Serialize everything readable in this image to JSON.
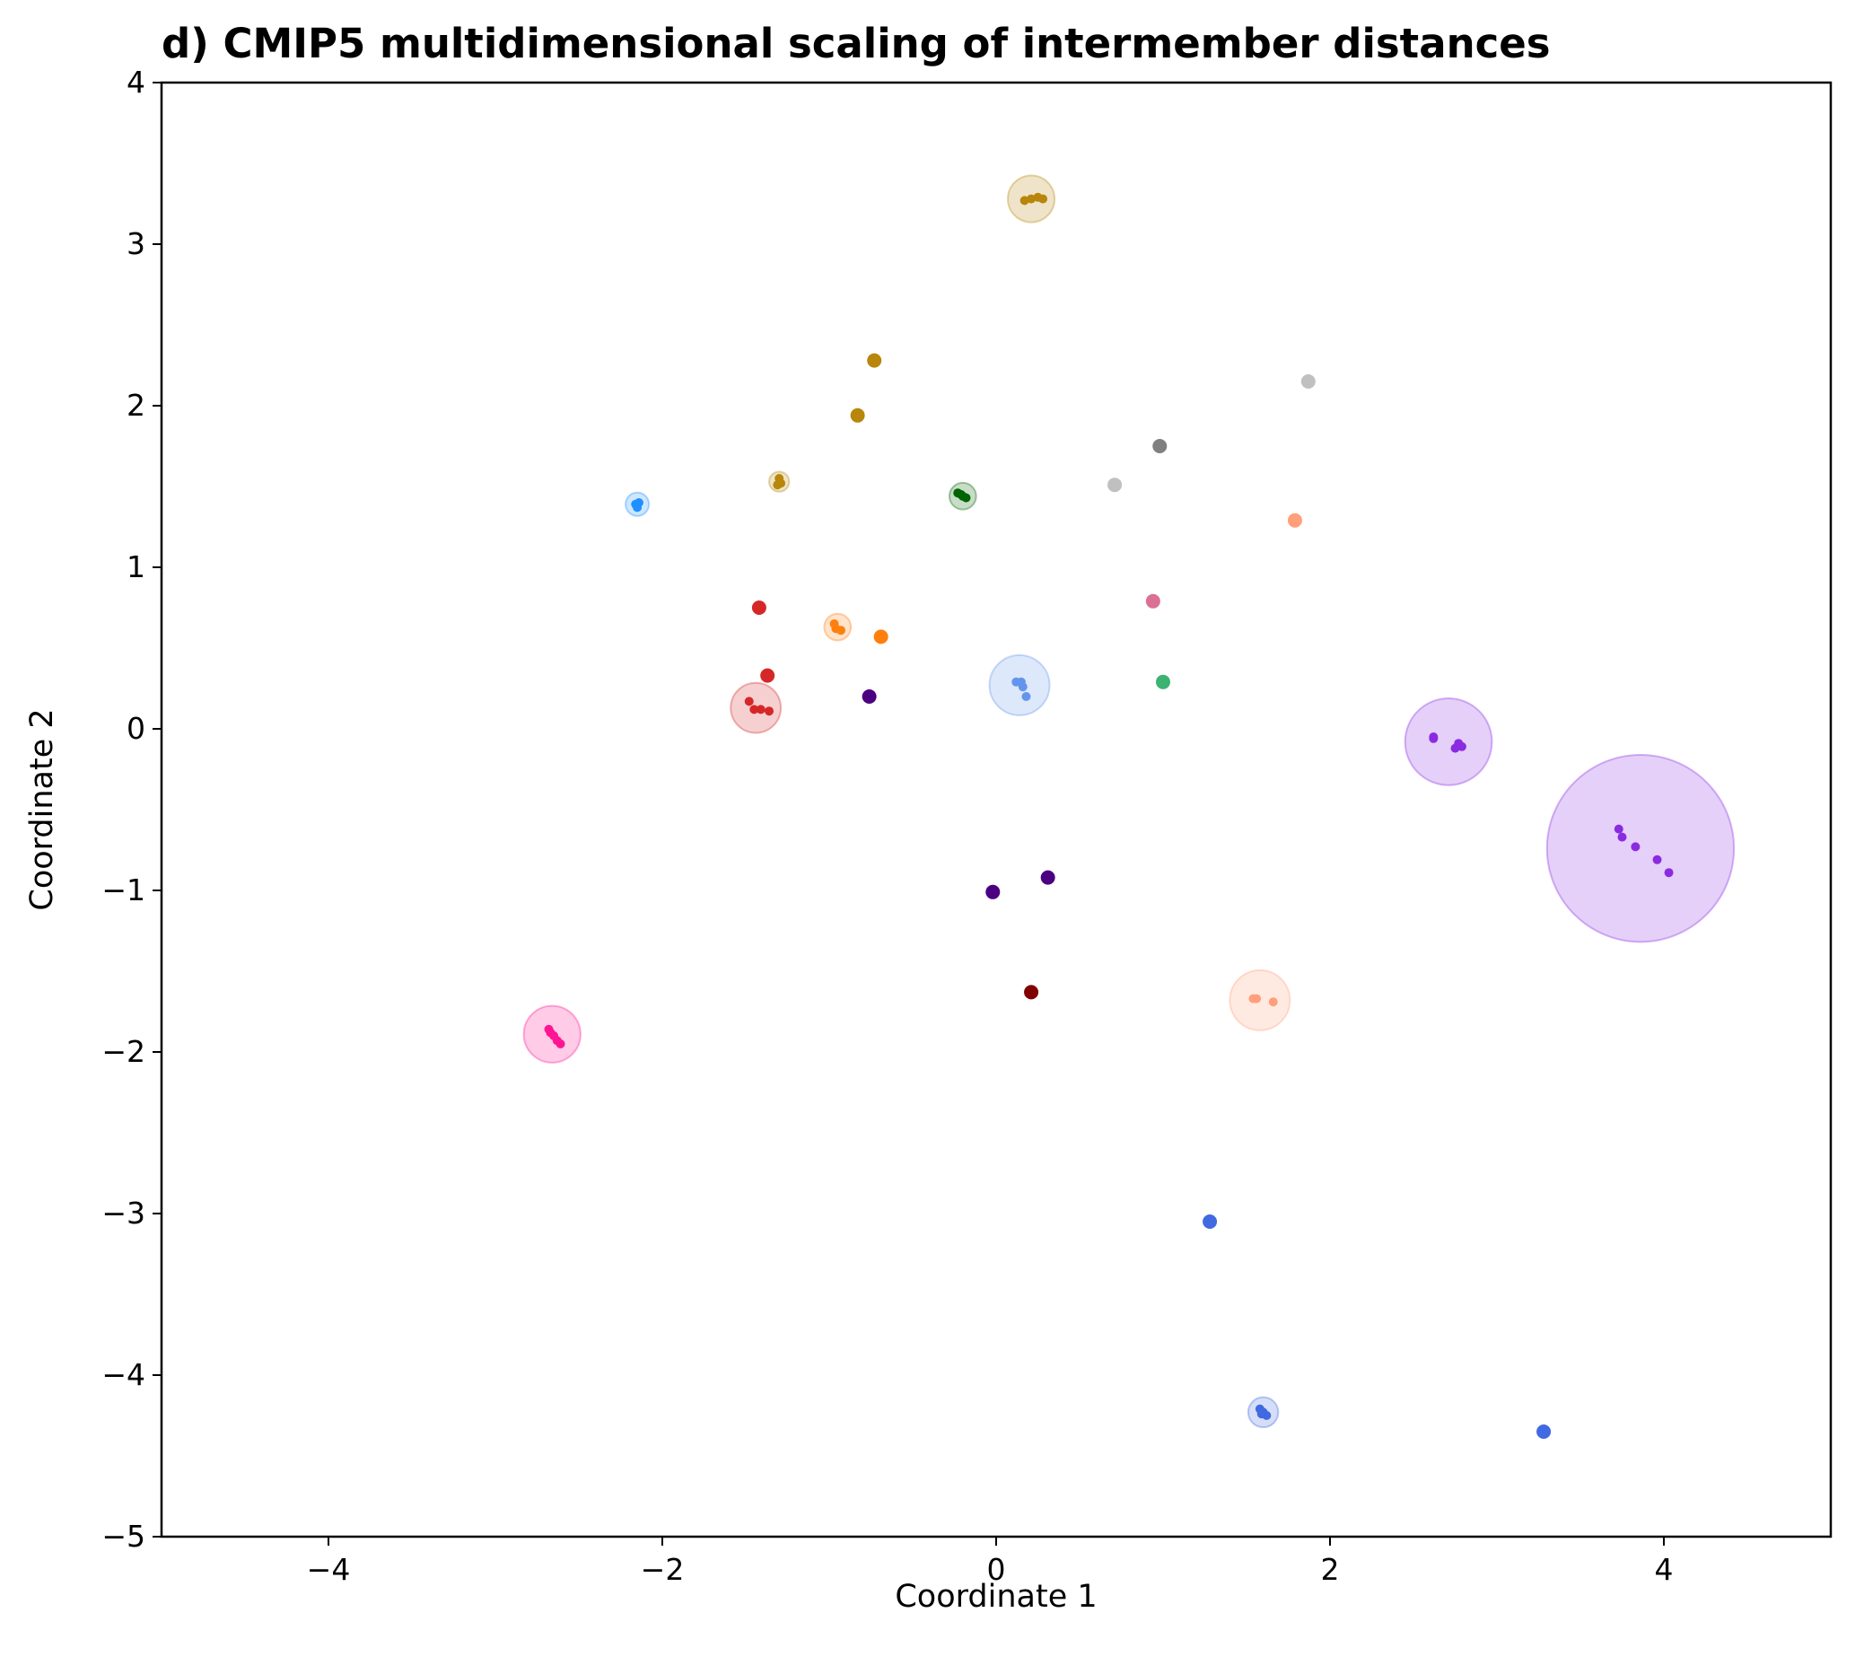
{
  "chart_data": {
    "type": "scatter",
    "title": "d) CMIP5 multidimensional scaling of intermember distances",
    "xlabel": "Coordinate 1",
    "ylabel": "Coordinate 2",
    "xlim": [
      -5,
      5
    ],
    "ylim": [
      -5,
      4
    ],
    "xticks": [
      {
        "value": -4,
        "label": "−4"
      },
      {
        "value": -2,
        "label": "−2"
      },
      {
        "value": 0,
        "label": "0"
      },
      {
        "value": 2,
        "label": "2"
      },
      {
        "value": 4,
        "label": "4"
      }
    ],
    "yticks": [
      {
        "value": -5,
        "label": "−5"
      },
      {
        "value": -4,
        "label": "−4"
      },
      {
        "value": -3,
        "label": "−3"
      },
      {
        "value": -2,
        "label": "−2"
      },
      {
        "value": -1,
        "label": "−1"
      },
      {
        "value": 0,
        "label": "0"
      },
      {
        "value": 1,
        "label": "1"
      },
      {
        "value": 2,
        "label": "2"
      },
      {
        "value": 3,
        "label": "3"
      },
      {
        "value": 4,
        "label": "4"
      }
    ],
    "grid": false,
    "legend": "none",
    "groups": [
      {
        "color": "#b8860b",
        "center": [
          0.21,
          3.28
        ],
        "radius": 0.14,
        "members": [
          [
            0.17,
            3.27
          ],
          [
            0.21,
            3.28
          ],
          [
            0.25,
            3.29
          ],
          [
            0.28,
            3.28
          ]
        ]
      },
      {
        "color": "#b8860b",
        "center": [
          -0.73,
          2.28
        ],
        "radius": 0,
        "members": [
          [
            -0.73,
            2.28
          ]
        ]
      },
      {
        "color": "#b8860b",
        "center": [
          -0.83,
          1.94
        ],
        "radius": 0,
        "members": [
          [
            -0.83,
            1.94
          ]
        ]
      },
      {
        "color": "#b8860b",
        "center": [
          -1.3,
          1.53
        ],
        "radius": 0.06,
        "members": [
          [
            -1.3,
            1.55
          ],
          [
            -1.31,
            1.51
          ],
          [
            -1.29,
            1.52
          ]
        ]
      },
      {
        "color": "#1e90ff",
        "center": [
          -2.15,
          1.39
        ],
        "radius": 0.07,
        "members": [
          [
            -2.16,
            1.39
          ],
          [
            -2.14,
            1.4
          ],
          [
            -2.15,
            1.37
          ]
        ]
      },
      {
        "color": "#006400",
        "center": [
          -0.2,
          1.44
        ],
        "radius": 0.08,
        "members": [
          [
            -0.23,
            1.46
          ],
          [
            -0.2,
            1.44
          ],
          [
            -0.18,
            1.43
          ],
          [
            -0.21,
            1.45
          ]
        ]
      },
      {
        "color": "#c0c0c0",
        "center": [
          1.87,
          2.15
        ],
        "radius": 0,
        "members": [
          [
            1.87,
            2.15
          ]
        ]
      },
      {
        "color": "#c0c0c0",
        "center": [
          0.71,
          1.51
        ],
        "radius": 0,
        "members": [
          [
            0.71,
            1.51
          ]
        ]
      },
      {
        "color": "#808080",
        "center": [
          0.98,
          1.75
        ],
        "radius": 0,
        "members": [
          [
            0.98,
            1.75
          ]
        ]
      },
      {
        "color": "#ffa07a",
        "center": [
          1.79,
          1.29
        ],
        "radius": 0,
        "members": [
          [
            1.79,
            1.29
          ]
        ]
      },
      {
        "color": "#db7093",
        "center": [
          0.94,
          0.79
        ],
        "radius": 0,
        "members": [
          [
            0.94,
            0.79
          ]
        ]
      },
      {
        "color": "#3cb371",
        "center": [
          1.0,
          0.29
        ],
        "radius": 0,
        "members": [
          [
            1.0,
            0.29
          ]
        ]
      },
      {
        "color": "#d62728",
        "center": [
          -1.42,
          0.75
        ],
        "radius": 0,
        "members": [
          [
            -1.42,
            0.75
          ]
        ]
      },
      {
        "color": "#d62728",
        "center": [
          -1.37,
          0.33
        ],
        "radius": 0,
        "members": [
          [
            -1.37,
            0.33
          ]
        ]
      },
      {
        "color": "#d62728",
        "center": [
          -1.44,
          0.13
        ],
        "radius": 0.15,
        "members": [
          [
            -1.48,
            0.17
          ],
          [
            -1.45,
            0.12
          ],
          [
            -1.41,
            0.12
          ],
          [
            -1.36,
            0.11
          ]
        ]
      },
      {
        "color": "#ff7f0e",
        "center": [
          -0.95,
          0.63
        ],
        "radius": 0.08,
        "members": [
          [
            -0.97,
            0.65
          ],
          [
            -0.93,
            0.61
          ],
          [
            -0.96,
            0.62
          ]
        ]
      },
      {
        "color": "#ff7f0e",
        "center": [
          -0.69,
          0.57
        ],
        "radius": 0,
        "members": [
          [
            -0.69,
            0.57
          ]
        ]
      },
      {
        "color": "#4b0082",
        "center": [
          -0.76,
          0.2
        ],
        "radius": 0,
        "members": [
          [
            -0.76,
            0.2
          ]
        ]
      },
      {
        "color": "#4b0082",
        "center": [
          -0.02,
          -1.01
        ],
        "radius": 0,
        "members": [
          [
            -0.02,
            -1.01
          ]
        ]
      },
      {
        "color": "#4b0082",
        "center": [
          0.31,
          -0.92
        ],
        "radius": 0,
        "members": [
          [
            0.31,
            -0.92
          ]
        ]
      },
      {
        "color": "#800000",
        "center": [
          0.21,
          -1.63
        ],
        "radius": 0,
        "members": [
          [
            0.21,
            -1.63
          ]
        ]
      },
      {
        "color": "#6495ed",
        "center": [
          0.14,
          0.27
        ],
        "radius": 0.18,
        "members": [
          [
            0.12,
            0.29
          ],
          [
            0.15,
            0.29
          ],
          [
            0.16,
            0.26
          ],
          [
            0.18,
            0.2
          ]
        ]
      },
      {
        "color": "#8a2be2",
        "center": [
          2.71,
          -0.08
        ],
        "radius": 0.26,
        "members": [
          [
            2.62,
            -0.05
          ],
          [
            2.62,
            -0.06
          ],
          [
            2.75,
            -0.12
          ],
          [
            2.77,
            -0.09
          ],
          [
            2.79,
            -0.11
          ]
        ]
      },
      {
        "color": "#8a2be2",
        "center": [
          3.86,
          -0.74
        ],
        "radius": 0.56,
        "members": [
          [
            3.73,
            -0.62
          ],
          [
            3.75,
            -0.67
          ],
          [
            3.83,
            -0.73
          ],
          [
            3.96,
            -0.81
          ],
          [
            4.03,
            -0.89
          ]
        ]
      },
      {
        "color": "#ffa07a",
        "center": [
          1.58,
          -1.68
        ],
        "radius": 0.18,
        "members": [
          [
            1.54,
            -1.67
          ],
          [
            1.56,
            -1.67
          ],
          [
            1.66,
            -1.69
          ]
        ]
      },
      {
        "color": "#ff1493",
        "center": [
          -2.66,
          -1.89
        ],
        "radius": 0.17,
        "members": [
          [
            -2.68,
            -1.86
          ],
          [
            -2.67,
            -1.88
          ],
          [
            -2.65,
            -1.9
          ],
          [
            -2.63,
            -1.93
          ],
          [
            -2.61,
            -1.95
          ]
        ]
      },
      {
        "color": "#4169e1",
        "center": [
          1.28,
          -3.05
        ],
        "radius": 0,
        "members": [
          [
            1.28,
            -3.05
          ]
        ]
      },
      {
        "color": "#4169e1",
        "center": [
          1.6,
          -4.23
        ],
        "radius": 0.09,
        "members": [
          [
            1.58,
            -4.21
          ],
          [
            1.6,
            -4.23
          ],
          [
            1.62,
            -4.25
          ],
          [
            1.59,
            -4.24
          ]
        ]
      },
      {
        "color": "#4169e1",
        "center": [
          3.28,
          -4.35
        ],
        "radius": 0,
        "members": [
          [
            3.28,
            -4.35
          ]
        ]
      }
    ]
  }
}
